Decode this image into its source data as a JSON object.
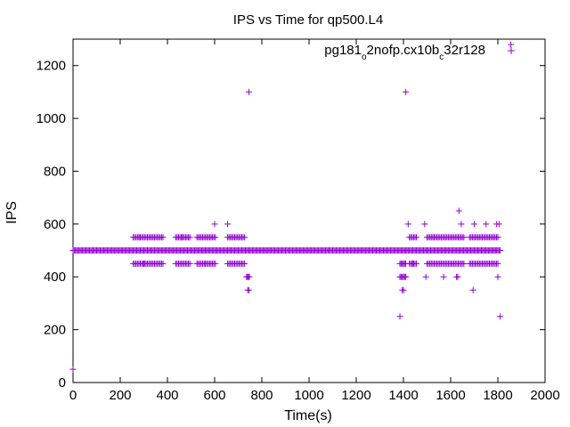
{
  "chart_data": {
    "type": "scatter",
    "title": "IPS vs Time for qp500.L4",
    "xlabel": "Time(s)",
    "ylabel": "IPS",
    "xlim": [
      0,
      2000
    ],
    "ylim": [
      0,
      1300
    ],
    "xticks": [
      0,
      200,
      400,
      600,
      800,
      1000,
      1200,
      1400,
      1600,
      1800,
      2000
    ],
    "yticks": [
      0,
      200,
      400,
      600,
      800,
      1000,
      1200
    ],
    "grid": false,
    "legend_position": "top-right",
    "marker": "plus",
    "color": "#9400d3",
    "series": [
      {
        "legend_parts": [
          {
            "text": "pg181",
            "sub": false
          },
          {
            "text": "o",
            "sub": true
          },
          {
            "text": "2nofp.cx10b",
            "sub": false
          },
          {
            "text": "c",
            "sub": true
          },
          {
            "text": "32r128",
            "sub": false
          }
        ],
        "baseline": {
          "y": 500,
          "x_start": 0,
          "x_end": 1810,
          "step": 5
        },
        "segments": [
          {
            "x_start": 255,
            "x_end": 385,
            "step": 6,
            "y": [
              550,
              450
            ]
          },
          {
            "x_start": 435,
            "x_end": 495,
            "step": 6,
            "y": [
              550,
              450
            ]
          },
          {
            "x_start": 525,
            "x_end": 605,
            "step": 6,
            "y": [
              550,
              450
            ]
          },
          {
            "x_start": 655,
            "x_end": 730,
            "step": 6,
            "y": [
              550,
              450
            ]
          },
          {
            "x_start": 735,
            "x_end": 750,
            "step": 4,
            "y": [
              400
            ]
          },
          {
            "x_start": 1385,
            "x_end": 1410,
            "step": 5,
            "y": [
              450,
              400
            ]
          },
          {
            "x_start": 1425,
            "x_end": 1460,
            "step": 6,
            "y": [
              550,
              450
            ]
          },
          {
            "x_start": 1500,
            "x_end": 1660,
            "step": 6,
            "y": [
              550,
              450
            ]
          },
          {
            "x_start": 1680,
            "x_end": 1805,
            "step": 6,
            "y": [
              550,
              450
            ]
          }
        ],
        "points": [
          [
            0,
            50
          ],
          [
            745,
            1100
          ],
          [
            1410,
            1100
          ],
          [
            1855,
            1280
          ],
          [
            600,
            600
          ],
          [
            655,
            600
          ],
          [
            1420,
            600
          ],
          [
            1490,
            600
          ],
          [
            1635,
            650
          ],
          [
            1645,
            600
          ],
          [
            1700,
            600
          ],
          [
            1750,
            600
          ],
          [
            1795,
            600
          ],
          [
            1805,
            600
          ],
          [
            740,
            350
          ],
          [
            745,
            350
          ],
          [
            1395,
            350
          ],
          [
            1400,
            350
          ],
          [
            1385,
            250
          ],
          [
            1810,
            250
          ],
          [
            1695,
            350
          ],
          [
            1495,
            400
          ],
          [
            1570,
            400
          ],
          [
            1625,
            400
          ],
          [
            1630,
            400
          ],
          [
            1800,
            400
          ],
          [
            280,
            550
          ],
          [
            300,
            450
          ],
          [
            460,
            550
          ],
          [
            560,
            450
          ],
          [
            1440,
            450
          ],
          [
            1530,
            550
          ]
        ]
      }
    ]
  }
}
